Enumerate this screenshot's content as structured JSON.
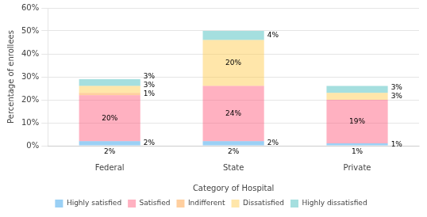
{
  "chart_data": {
    "type": "bar",
    "stacked": true,
    "categories": [
      "Federal",
      "State",
      "Private"
    ],
    "series": [
      {
        "name": "Highly satisfied",
        "values": [
          2,
          2,
          1
        ],
        "value_labels": [
          "2%",
          "2%",
          "1%"
        ]
      },
      {
        "name": "Satisfied",
        "values": [
          20,
          24,
          19
        ],
        "value_labels": [
          "20%",
          "24%",
          "19%"
        ]
      },
      {
        "name": "Indifferent",
        "values": [
          1,
          0,
          0
        ],
        "value_labels": [
          "1%",
          null,
          null
        ]
      },
      {
        "name": "Dissatisfied",
        "values": [
          3,
          20,
          3
        ],
        "value_labels": [
          "3%",
          "20%",
          "3%"
        ]
      },
      {
        "name": "Highly dissatisfied",
        "values": [
          3,
          4,
          3
        ],
        "value_labels": [
          "3%",
          "4%",
          "3%"
        ]
      }
    ],
    "data_labels": true,
    "annotations": [
      {
        "category": "Federal",
        "text": "2%"
      },
      {
        "category": "State",
        "text": "2%"
      },
      {
        "category": "Private",
        "text": "1%"
      }
    ],
    "xlabel": "Category of Hospital",
    "ylabel": "Percentage of enrollees",
    "ylim": [
      0,
      60
    ],
    "yticks": [
      {
        "value": 0,
        "label": "0%"
      },
      {
        "value": 10,
        "label": "10%"
      },
      {
        "value": 20,
        "label": "20%"
      },
      {
        "value": 30,
        "label": "30%"
      },
      {
        "value": 40,
        "label": "40%"
      },
      {
        "value": 50,
        "label": "50%"
      },
      {
        "value": 60,
        "label": "60%"
      }
    ],
    "grid": true,
    "legend": "bottom"
  }
}
